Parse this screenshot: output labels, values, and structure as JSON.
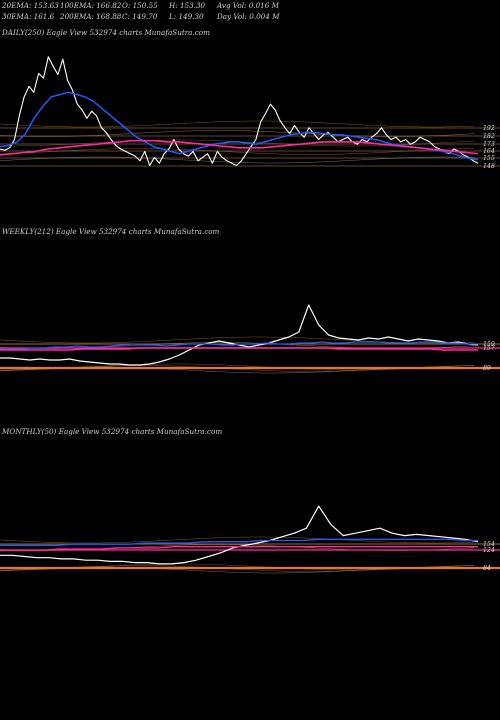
{
  "stats": {
    "ema20": "20EMA: 153.63",
    "ema100": "100EMA: 166.82",
    "open": "O: 150.55",
    "high": "H: 153.30",
    "avg_vol": "Avg Vol: 0.016  M",
    "ema30": "30EMA: 161.6",
    "ema200": "200EMA: 168.88",
    "close": "C: 149.70",
    "low": "L: 149.30",
    "day_vol": "Day Vol: 0.004 M"
  },
  "colors": {
    "background": "#000000",
    "price": "#ffffff",
    "blue_ema": "#1f5bff",
    "pink_ema": "#ff2aa0",
    "orange_level": "#e8762a",
    "level_line": "#c98a50"
  },
  "chart_data": [
    {
      "type": "line",
      "label": "DAILY(250) Eagle  View  532974  charts MunafaSutra.com",
      "ylim": [
        140,
        250
      ],
      "price_axis_ticks": [
        "192",
        "182",
        "173",
        "164",
        "155",
        "148"
      ],
      "horizontal_levels": [
        192,
        182,
        173,
        164,
        155,
        148
      ],
      "series": [
        {
          "values": [
            162,
            161,
            163,
            170,
            190,
            206,
            215,
            210,
            226,
            222,
            240,
            232,
            225,
            238,
            220,
            212,
            200,
            195,
            188,
            194,
            190,
            180,
            176,
            170,
            165,
            162,
            160,
            158,
            156,
            152,
            160,
            148,
            155,
            150,
            158,
            162,
            170,
            162,
            158,
            156,
            160,
            152,
            155,
            158,
            150,
            160,
            155,
            152,
            150,
            148,
            152,
            158,
            164,
            170,
            185,
            192,
            200,
            195,
            186,
            180,
            175,
            182,
            176,
            172,
            180,
            175,
            170,
            174,
            176,
            172,
            168,
            170,
            172,
            168,
            166,
            170,
            168,
            172,
            175,
            180,
            174,
            170,
            172,
            168,
            170,
            166,
            168,
            172,
            170,
            168,
            164,
            162,
            160,
            158,
            162,
            160,
            157,
            155,
            152,
            150
          ]
        },
        {
          "values": [
            164,
            165,
            168,
            175,
            188,
            198,
            206,
            208,
            210,
            208,
            206,
            202,
            196,
            190,
            184,
            178,
            172,
            168,
            164,
            162,
            160,
            158,
            160,
            162,
            164,
            166,
            167,
            168,
            168,
            167,
            166,
            168,
            170,
            172,
            174,
            175,
            176,
            176,
            175,
            174,
            174,
            173,
            172,
            171,
            170,
            168,
            166,
            165,
            164,
            163,
            162,
            161,
            160,
            158,
            156,
            154,
            153
          ]
        },
        {
          "values": [
            157,
            158,
            159,
            160,
            162,
            163,
            164,
            165,
            166,
            167,
            168,
            169,
            169,
            169,
            168,
            168,
            167,
            166,
            165,
            164,
            163,
            163,
            163,
            164,
            165,
            166,
            167,
            168,
            168,
            168,
            168,
            167,
            166,
            165,
            164,
            163,
            162,
            161,
            160,
            159,
            158
          ]
        }
      ]
    },
    {
      "type": "line",
      "label": "WEEKLY(212) Eagle  View  532974  charts MunafaSutra.com",
      "price_axis_ticks": [
        "159",
        "157",
        "89"
      ],
      "horizontal_levels": [
        159,
        157,
        89
      ],
      "series": [
        {
          "values": [
            157,
            157,
            156,
            155,
            156,
            155,
            155,
            156,
            154,
            153,
            152,
            151,
            151,
            150,
            150,
            151,
            153,
            156,
            160,
            165,
            170,
            172,
            174,
            172,
            170,
            168,
            170,
            172,
            175,
            178,
            183,
            210,
            190,
            180,
            177,
            176,
            175,
            177,
            176,
            178,
            176,
            174,
            176,
            175,
            174,
            172,
            173,
            171,
            170
          ]
        },
        {
          "values": [
            166,
            166,
            166,
            167,
            167,
            168,
            168,
            169,
            168,
            168,
            169,
            170,
            171,
            170,
            170,
            169,
            170,
            171,
            171,
            171,
            170,
            170,
            171,
            171,
            172,
            171,
            171,
            172,
            172,
            173,
            172,
            172,
            173,
            173,
            173,
            172,
            172,
            172,
            173,
            173,
            172,
            172,
            171,
            171
          ]
        },
        {
          "values": [
            165,
            165,
            165,
            165,
            165,
            165,
            165,
            166,
            166,
            166,
            166,
            166,
            167,
            167,
            167,
            167,
            167,
            167,
            167,
            167,
            167,
            167,
            167,
            167,
            167,
            167,
            167,
            167,
            167,
            166,
            166,
            166,
            166,
            166,
            166,
            166,
            166,
            166,
            165,
            165,
            165,
            165
          ]
        }
      ]
    },
    {
      "type": "line",
      "label": "MONTHLY(50) Eagle  View  532974  charts MunafaSutra.com",
      "price_axis_ticks": [
        "154",
        "124",
        "84"
      ],
      "horizontal_levels": [
        154,
        124,
        84
      ],
      "series": [
        {
          "values": [
            160,
            160,
            159,
            158,
            158,
            157,
            157,
            156,
            156,
            155,
            155,
            154,
            154,
            153,
            153,
            154,
            156,
            159,
            162,
            166,
            168,
            170,
            172,
            175,
            178,
            182,
            200,
            185,
            176,
            178,
            180,
            182,
            178,
            176,
            177,
            176,
            175,
            174,
            173,
            171
          ]
        },
        {
          "values": [
            168,
            168,
            168,
            168,
            168,
            169,
            169,
            169,
            169,
            169,
            170,
            170,
            170,
            170,
            171,
            171,
            171,
            171,
            172,
            172,
            172,
            172,
            173,
            173,
            173,
            173,
            173,
            173,
            173,
            173,
            173,
            173,
            172,
            172
          ]
        },
        {
          "values": [
            164,
            164,
            164,
            164,
            165,
            165,
            165,
            165,
            166,
            166,
            166,
            166,
            167,
            167,
            167,
            167,
            167,
            167,
            167,
            167,
            167,
            167,
            167,
            167,
            167,
            167,
            167,
            167,
            167,
            167,
            167,
            167,
            167,
            167
          ]
        }
      ]
    }
  ]
}
